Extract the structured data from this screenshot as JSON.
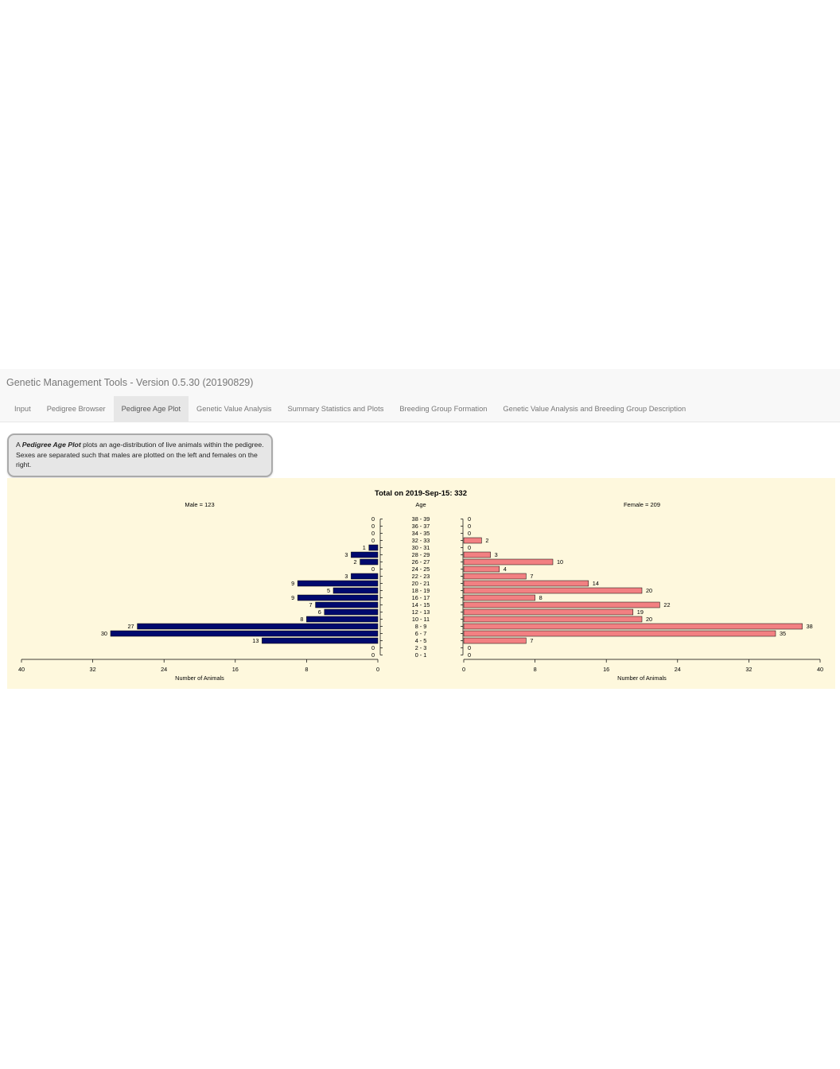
{
  "navbar": {
    "brand": "Genetic Management Tools - Version 0.5.30 (20190829)",
    "tabs": [
      {
        "label": "Input",
        "active": false
      },
      {
        "label": "Pedigree Browser",
        "active": false
      },
      {
        "label": "Pedigree Age Plot",
        "active": true
      },
      {
        "label": "Genetic Value Analysis",
        "active": false
      },
      {
        "label": "Summary Statistics and Plots",
        "active": false
      },
      {
        "label": "Breeding Group Formation",
        "active": false
      },
      {
        "label": "Genetic Value Analysis and Breeding Group Description",
        "active": false
      }
    ]
  },
  "info": {
    "lead": "A ",
    "emphasis": "Pedigree Age Plot",
    "text": " plots an age-distribution of live animals within the pedigree. Sexes are separated such that males are plotted on the left and females on the right."
  },
  "chart_data": {
    "type": "bar",
    "title": "Total on 2019-Sep-15: 332",
    "center_label": "Age",
    "categories": [
      "38 - 39",
      "36 - 37",
      "34 - 35",
      "32 - 33",
      "30 - 31",
      "28 - 29",
      "26 - 27",
      "24 - 25",
      "22 - 23",
      "20 - 21",
      "18 - 19",
      "16 - 17",
      "14 - 15",
      "12 - 13",
      "10 - 11",
      "8 - 9",
      "6 - 7",
      "4 - 5",
      "2 - 3",
      "0 - 1"
    ],
    "series": [
      {
        "name": "Male = 123",
        "values": [
          0,
          0,
          0,
          0,
          1,
          3,
          2,
          0,
          3,
          9,
          5,
          9,
          7,
          6,
          8,
          27,
          30,
          13,
          0,
          0
        ],
        "color": "#000a6e"
      },
      {
        "name": "Female = 209",
        "values": [
          0,
          0,
          0,
          2,
          0,
          3,
          10,
          4,
          7,
          14,
          20,
          8,
          22,
          19,
          20,
          38,
          35,
          7,
          0,
          0
        ],
        "color": "#f28082"
      }
    ],
    "xlabel": "Number of Animals",
    "xlim": [
      0,
      40
    ],
    "ticks": [
      0,
      8,
      16,
      24,
      32,
      40
    ],
    "grid": false
  }
}
